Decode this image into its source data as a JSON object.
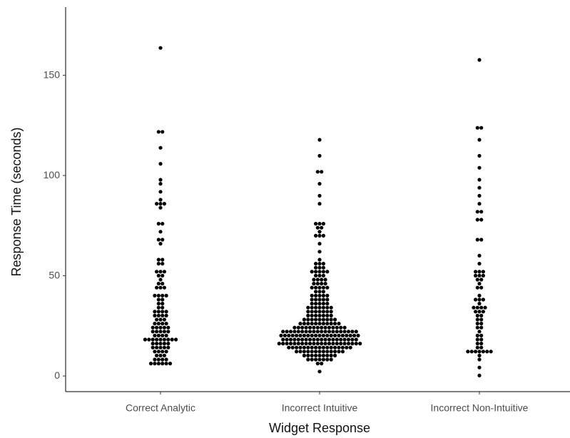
{
  "chart_data": {
    "type": "dotplot",
    "x_label": "Widget Response",
    "y_label": "Response Time (seconds)",
    "categories": [
      "Correct Analytic",
      "Incorrect Intuitive",
      "Incorrect Non-Intuitive"
    ],
    "values": [
      [
        164,
        122,
        122,
        113,
        105,
        98,
        95,
        92,
        88,
        86,
        86,
        85,
        84,
        76,
        76,
        72,
        67,
        67,
        66,
        58,
        58,
        57,
        56,
        53,
        52,
        52,
        51,
        50,
        48,
        47,
        46,
        45,
        45,
        44,
        41,
        41,
        41,
        40,
        38,
        38,
        37,
        36,
        34,
        34,
        33,
        33,
        32,
        32,
        31,
        31,
        30,
        30,
        29,
        28,
        28,
        27,
        27,
        26,
        26,
        25,
        25,
        25,
        24,
        24,
        23,
        23,
        22,
        22,
        22,
        21,
        20,
        20,
        20,
        19,
        19,
        19,
        19,
        19,
        19,
        19,
        18,
        18,
        17,
        17,
        16,
        16,
        16,
        15,
        15,
        14,
        14,
        14,
        13,
        13,
        12,
        12,
        11,
        10,
        10,
        9,
        9,
        8,
        8,
        7,
        7,
        6,
        6,
        6,
        6
      ],
      [
        117,
        109,
        101,
        101,
        95,
        89,
        86,
        76,
        75,
        75,
        74,
        74,
        72,
        70,
        70,
        69,
        66,
        62,
        58,
        57,
        57,
        56,
        55,
        55,
        54,
        53,
        53,
        52,
        52,
        52,
        51,
        51,
        50,
        49,
        49,
        48,
        48,
        47,
        47,
        46,
        46,
        45,
        45,
        45,
        44,
        44,
        43,
        42,
        42,
        41,
        41,
        41,
        40,
        40,
        39,
        39,
        38,
        38,
        38,
        37,
        37,
        37,
        36,
        36,
        35,
        35,
        35,
        34,
        34,
        34,
        34,
        33,
        33,
        33,
        32,
        32,
        32,
        32,
        31,
        31,
        31,
        30,
        30,
        30,
        30,
        29,
        29,
        29,
        29,
        29,
        28,
        28,
        28,
        28,
        27,
        27,
        27,
        27,
        27,
        27,
        26,
        26,
        26,
        26,
        26,
        25,
        25,
        25,
        25,
        25,
        25,
        25,
        24,
        24,
        24,
        24,
        24,
        24,
        24,
        23,
        23,
        23,
        23,
        23,
        23,
        23,
        23,
        23,
        23,
        23,
        23,
        22,
        22,
        22,
        22,
        22,
        22,
        22,
        22,
        21,
        21,
        21,
        21,
        21,
        21,
        21,
        21,
        21,
        21,
        20,
        20,
        20,
        20,
        20,
        20,
        20,
        20,
        20,
        20,
        20,
        19,
        19,
        19,
        19,
        19,
        19,
        19,
        19,
        19,
        19,
        18,
        18,
        18,
        18,
        18,
        18,
        18,
        18,
        18,
        18,
        17,
        17,
        17,
        17,
        17,
        17,
        17,
        17,
        17,
        17,
        17,
        17,
        16,
        16,
        16,
        16,
        16,
        16,
        16,
        16,
        16,
        16,
        15,
        15,
        15,
        15,
        15,
        15,
        15,
        15,
        15,
        14,
        14,
        14,
        14,
        14,
        14,
        14,
        14,
        13,
        13,
        13,
        13,
        13,
        13,
        13,
        12,
        12,
        12,
        12,
        12,
        12,
        11,
        11,
        11,
        11,
        11,
        10,
        10,
        10,
        10,
        9,
        9,
        9,
        9,
        8,
        8,
        8,
        7,
        7,
        2
      ],
      [
        157,
        124,
        124,
        118,
        110,
        104,
        97,
        93,
        89,
        86,
        82,
        82,
        77,
        77,
        68,
        68,
        61,
        56,
        53,
        52,
        52,
        51,
        50,
        50,
        49,
        48,
        47,
        45,
        44,
        41,
        39,
        38,
        38,
        36,
        35,
        34,
        34,
        34,
        33,
        33,
        33,
        31,
        30,
        29,
        28,
        27,
        26,
        25,
        24,
        22,
        21,
        20,
        19,
        18,
        17,
        16,
        15,
        14,
        13,
        13,
        13,
        13,
        12,
        12,
        12,
        10,
        8,
        5,
        0
      ]
    ],
    "color": "#000000",
    "ylim": [
      -7.8,
      184
    ],
    "yticks": [
      0,
      50,
      100,
      150
    ]
  }
}
